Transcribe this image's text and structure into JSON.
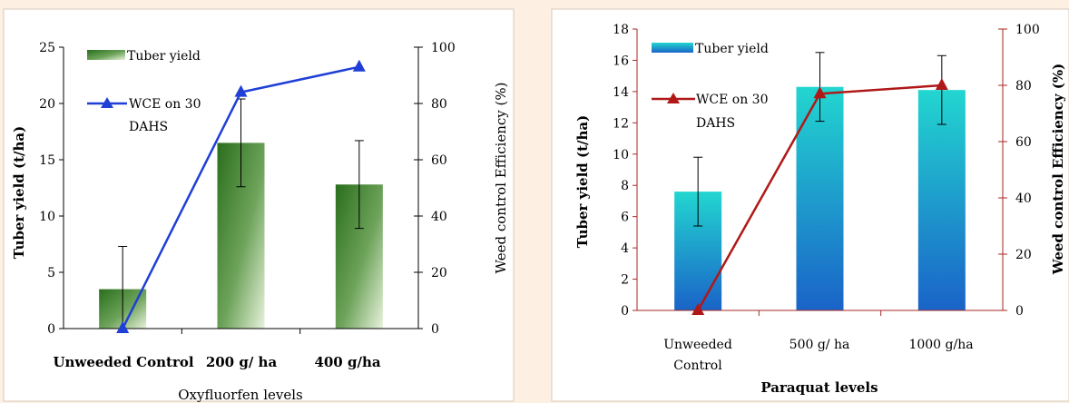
{
  "chart_data": [
    {
      "type": "bar",
      "categories": [
        "Unweeded Control",
        "200 g/ ha",
        "400 g/ha"
      ],
      "series": [
        {
          "name": "Tuber yield",
          "axis": "left",
          "values": [
            3.5,
            16.5,
            12.8
          ],
          "error": [
            3.8,
            3.9,
            3.9
          ]
        },
        {
          "name": "WCE on 30 DAHS",
          "axis": "right",
          "kind": "line",
          "values": [
            0,
            84,
            93
          ]
        }
      ],
      "xlabel": "Oxyfluorfen levels",
      "ylabel": "Tuber yield (t/ha)",
      "y2label": "Weed control Efficiency (%)",
      "ylim": [
        0,
        25
      ],
      "yticks": [
        0,
        5,
        10,
        15,
        20,
        25
      ],
      "y2lim": [
        0,
        100
      ],
      "y2ticks": [
        0,
        20,
        40,
        60,
        80,
        100
      ],
      "legend": {
        "bar": "Tuber yield",
        "line_1": "WCE on 30",
        "line_2": "DAHS"
      },
      "colors": {
        "bar_dark": "#2a6e1c",
        "bar_light": "#e8f2dc",
        "line": "#1f3fd6"
      },
      "grid": false
    },
    {
      "type": "bar",
      "categories": [
        "Unweeded Control",
        "500 g/ ha",
        "1000 g/ha"
      ],
      "category_lines": [
        [
          "Unweeded",
          "Control"
        ],
        [
          "500 g/ ha"
        ],
        [
          "1000 g/ha"
        ]
      ],
      "series": [
        {
          "name": "Tuber yield",
          "axis": "left",
          "values": [
            7.6,
            14.3,
            14.1
          ],
          "error": [
            2.2,
            2.2,
            2.2
          ]
        },
        {
          "name": "WCE on 30 DAHS",
          "axis": "right",
          "kind": "line",
          "values": [
            0,
            77,
            80
          ]
        }
      ],
      "xlabel": "Paraquat levels",
      "ylabel": "Tuber yield (t/ha)",
      "y2label": "Weed control Efficiency (%)",
      "ylim": [
        0,
        18
      ],
      "yticks": [
        0,
        2,
        4,
        6,
        8,
        10,
        12,
        14,
        16,
        18
      ],
      "y2lim": [
        0,
        100
      ],
      "y2ticks": [
        0,
        20,
        40,
        60,
        80,
        100
      ],
      "legend": {
        "bar": "Tuber yield",
        "line_1": "WCE on 30",
        "line_2": "DAHS"
      },
      "colors": {
        "bar_top": "#22d6d0",
        "bar_bottom": "#1a63c8",
        "line": "#b01818"
      },
      "grid": false
    }
  ]
}
